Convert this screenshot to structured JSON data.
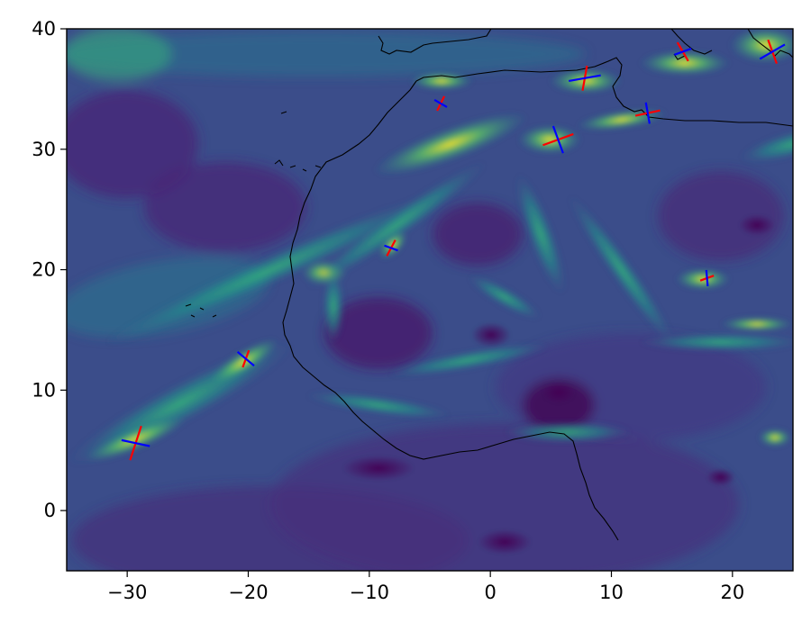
{
  "map": {
    "projection": "plate-carree",
    "colormap": "viridis",
    "frame_color": "#000000",
    "coastline_color": "#000000",
    "extent": {
      "lon": [
        -35,
        25
      ],
      "lat": [
        -5,
        40
      ]
    },
    "x_ticks": [
      {
        "value": -30,
        "label": "−30"
      },
      {
        "value": -20,
        "label": "−20"
      },
      {
        "value": -10,
        "label": "−10"
      },
      {
        "value": 0,
        "label": "0"
      },
      {
        "value": 10,
        "label": "10"
      },
      {
        "value": 20,
        "label": "20"
      }
    ],
    "y_ticks": [
      {
        "value": 0,
        "label": "0"
      },
      {
        "value": 10,
        "label": "10"
      },
      {
        "value": 20,
        "label": "20"
      },
      {
        "value": 30,
        "label": "30"
      },
      {
        "value": 40,
        "label": "40"
      }
    ],
    "cross_colors": {
      "major_axis": "#ff0000",
      "minor_axis": "#0000ff"
    },
    "crosses": [
      {
        "lon": -29.3,
        "lat": 5.6
      },
      {
        "lon": -20.2,
        "lat": 12.6
      },
      {
        "lon": -8.2,
        "lat": 21.8
      },
      {
        "lon": -4.1,
        "lat": 33.8
      },
      {
        "lon": 5.6,
        "lat": 30.8
      },
      {
        "lon": 7.8,
        "lat": 35.9
      },
      {
        "lon": 13.0,
        "lat": 33.0
      },
      {
        "lon": 15.9,
        "lat": 38.1
      },
      {
        "lon": 17.9,
        "lat": 19.3
      },
      {
        "lon": 23.3,
        "lat": 38.1
      }
    ]
  }
}
